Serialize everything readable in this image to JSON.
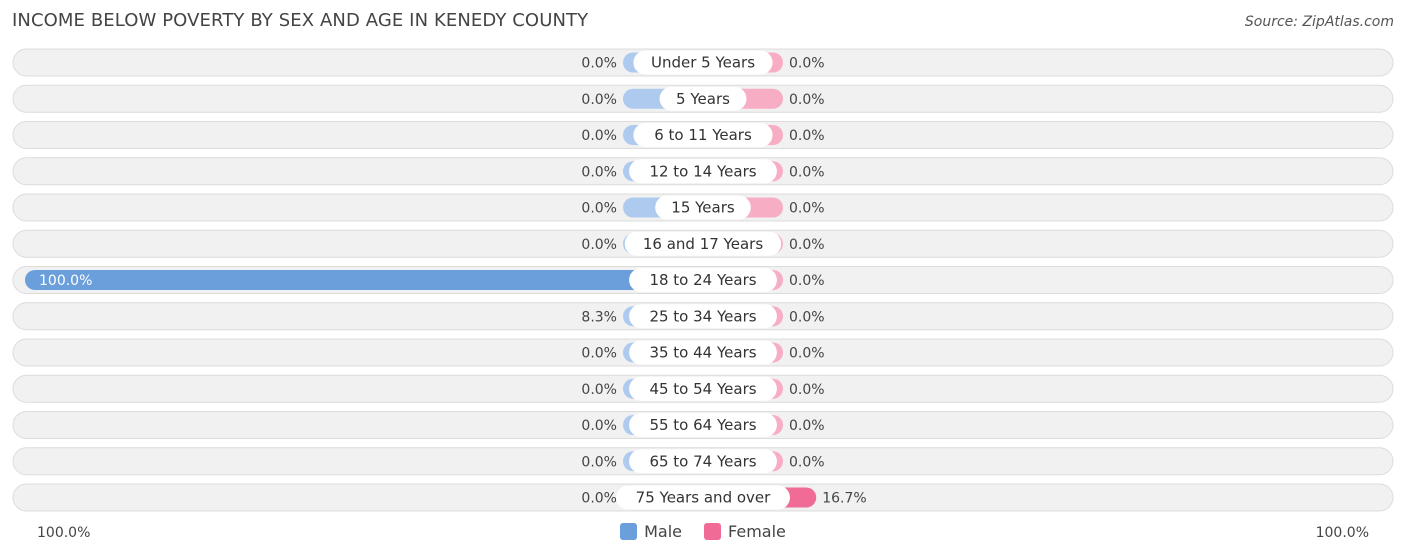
{
  "header": {
    "title": "INCOME BELOW POVERTY BY SEX AND AGE IN KENEDY COUNTY",
    "source": "Source: ZipAtlas.com"
  },
  "axis": {
    "left_label": "100.0%",
    "right_label": "100.0%"
  },
  "legend": {
    "male_label": "Male",
    "female_label": "Female"
  },
  "colors": {
    "male": "#aecbef",
    "male_strong": "#6a9fdc",
    "female": "#f7aec4",
    "female_strong": "#f06b96",
    "row_bg": "#f1f1f1",
    "row_border": "#dcdcdc"
  },
  "chart_data": {
    "type": "bar",
    "orientation": "horizontal-diverging",
    "title": "INCOME BELOW POVERTY BY SEX AND AGE IN KENEDY COUNTY",
    "categories": [
      "Under 5 Years",
      "5 Years",
      "6 to 11 Years",
      "12 to 14 Years",
      "15 Years",
      "16 and 17 Years",
      "18 to 24 Years",
      "25 to 34 Years",
      "35 to 44 Years",
      "45 to 54 Years",
      "55 to 64 Years",
      "65 to 74 Years",
      "75 Years and over"
    ],
    "series": [
      {
        "name": "Male",
        "values": [
          0.0,
          0.0,
          0.0,
          0.0,
          0.0,
          0.0,
          100.0,
          8.3,
          0.0,
          0.0,
          0.0,
          0.0,
          0.0
        ],
        "labels": [
          "0.0%",
          "0.0%",
          "0.0%",
          "0.0%",
          "0.0%",
          "0.0%",
          "100.0%",
          "8.3%",
          "0.0%",
          "0.0%",
          "0.0%",
          "0.0%",
          "0.0%"
        ]
      },
      {
        "name": "Female",
        "values": [
          0.0,
          0.0,
          0.0,
          0.0,
          0.0,
          0.0,
          0.0,
          0.0,
          0.0,
          0.0,
          0.0,
          0.0,
          16.7
        ],
        "labels": [
          "0.0%",
          "0.0%",
          "0.0%",
          "0.0%",
          "0.0%",
          "0.0%",
          "0.0%",
          "0.0%",
          "0.0%",
          "0.0%",
          "0.0%",
          "0.0%",
          "16.7%"
        ]
      }
    ],
    "xlim": [
      -100,
      100
    ],
    "legend_position": "bottom-center",
    "grid": false
  }
}
